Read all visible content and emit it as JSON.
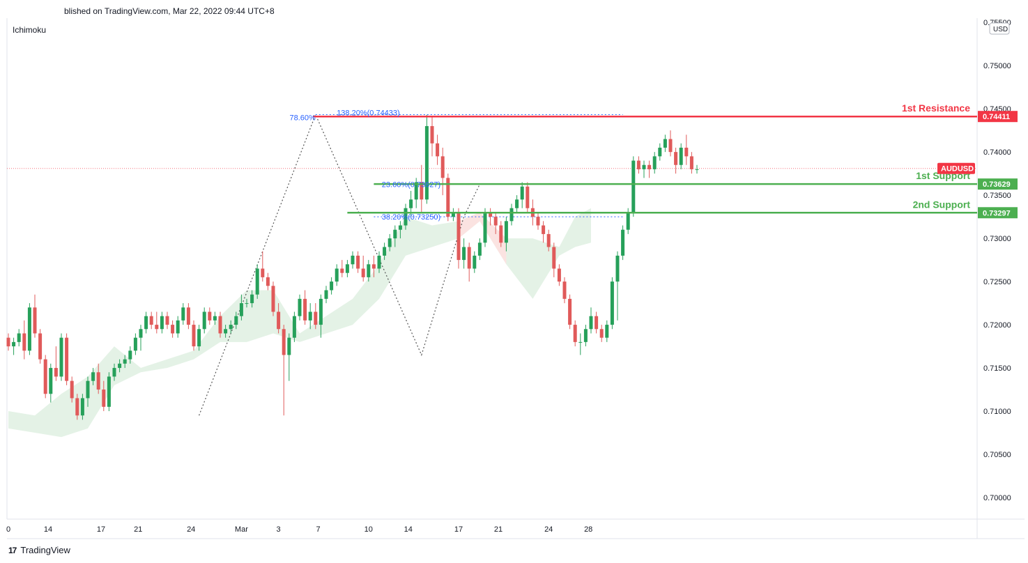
{
  "header": {
    "published": "blished on TradingView.com, Mar 22, 2022 09:44 UTC+8"
  },
  "indicator": "Ichimoku",
  "currency": "USD",
  "brand": {
    "name": "TradingView",
    "icon": "tradingview-logo-icon"
  },
  "colors": {
    "up": "#26a05a",
    "down": "#e05a5a",
    "resistance": "#f23645",
    "support": "#4caf50",
    "fib": "#2962ff",
    "cloud_up": "#e4f2e6",
    "cloud_down": "#fbe3e1",
    "price_line": "#f23645"
  },
  "chart_data": {
    "type": "candlestick",
    "symbol": "AUDUSD",
    "y_ticks": [
      "0.70000",
      "0.70500",
      "0.71000",
      "0.71500",
      "0.72000",
      "0.72500",
      "0.73000",
      "0.73500",
      "0.74000",
      "0.74500",
      "0.75000"
    ],
    "y_top_partial": "0.75500",
    "ylim": [
      0.6975,
      0.7555
    ],
    "x_ticks": [
      {
        "label": "0",
        "pos": 0
      },
      {
        "label": "14",
        "pos": 7.5
      },
      {
        "label": "17",
        "pos": 17.5
      },
      {
        "label": "21",
        "pos": 24.5
      },
      {
        "label": "24",
        "pos": 34.5
      },
      {
        "label": "Mar",
        "pos": 44
      },
      {
        "label": "3",
        "pos": 51
      },
      {
        "label": "7",
        "pos": 58.5
      },
      {
        "label": "10",
        "pos": 68
      },
      {
        "label": "14",
        "pos": 75.5
      },
      {
        "label": "17",
        "pos": 85
      },
      {
        "label": "21",
        "pos": 92.5
      },
      {
        "label": "24",
        "pos": 102
      },
      {
        "label": "28",
        "pos": 109.5
      }
    ],
    "candles": [
      [
        0.7185,
        0.719,
        0.717,
        0.7175
      ],
      [
        0.7175,
        0.7185,
        0.7165,
        0.718
      ],
      [
        0.718,
        0.7195,
        0.7175,
        0.719
      ],
      [
        0.719,
        0.7205,
        0.716,
        0.717
      ],
      [
        0.717,
        0.7225,
        0.7165,
        0.722
      ],
      [
        0.722,
        0.7235,
        0.7185,
        0.719
      ],
      [
        0.719,
        0.7195,
        0.7155,
        0.716
      ],
      [
        0.716,
        0.7165,
        0.7115,
        0.712
      ],
      [
        0.712,
        0.7155,
        0.711,
        0.715
      ],
      [
        0.715,
        0.7175,
        0.7135,
        0.714
      ],
      [
        0.714,
        0.719,
        0.7135,
        0.7185
      ],
      [
        0.7185,
        0.719,
        0.713,
        0.7135
      ],
      [
        0.7135,
        0.714,
        0.711,
        0.7115
      ],
      [
        0.7115,
        0.712,
        0.709,
        0.7095
      ],
      [
        0.7095,
        0.712,
        0.709,
        0.7115
      ],
      [
        0.7115,
        0.714,
        0.7105,
        0.7135
      ],
      [
        0.7135,
        0.715,
        0.713,
        0.7145
      ],
      [
        0.7145,
        0.7155,
        0.712,
        0.7125
      ],
      [
        0.7125,
        0.7135,
        0.71,
        0.7105
      ],
      [
        0.7105,
        0.7145,
        0.71,
        0.714
      ],
      [
        0.714,
        0.7155,
        0.7135,
        0.715
      ],
      [
        0.715,
        0.716,
        0.7145,
        0.7155
      ],
      [
        0.7155,
        0.7165,
        0.715,
        0.716
      ],
      [
        0.716,
        0.7175,
        0.7155,
        0.717
      ],
      [
        0.717,
        0.719,
        0.7165,
        0.7185
      ],
      [
        0.7185,
        0.72,
        0.717,
        0.7195
      ],
      [
        0.7195,
        0.7215,
        0.719,
        0.721
      ],
      [
        0.721,
        0.7215,
        0.7195,
        0.72
      ],
      [
        0.72,
        0.7215,
        0.719,
        0.7195
      ],
      [
        0.7195,
        0.7215,
        0.719,
        0.721
      ],
      [
        0.721,
        0.7215,
        0.7195,
        0.72
      ],
      [
        0.72,
        0.7205,
        0.7185,
        0.719
      ],
      [
        0.719,
        0.721,
        0.7185,
        0.7205
      ],
      [
        0.7205,
        0.7225,
        0.72,
        0.722
      ],
      [
        0.722,
        0.7225,
        0.7195,
        0.72
      ],
      [
        0.72,
        0.7205,
        0.717,
        0.7175
      ],
      [
        0.7175,
        0.72,
        0.717,
        0.7195
      ],
      [
        0.7195,
        0.722,
        0.719,
        0.7215
      ],
      [
        0.7215,
        0.722,
        0.72,
        0.7205
      ],
      [
        0.7205,
        0.7215,
        0.72,
        0.721
      ],
      [
        0.721,
        0.7215,
        0.7185,
        0.719
      ],
      [
        0.719,
        0.72,
        0.7185,
        0.7195
      ],
      [
        0.7195,
        0.7205,
        0.719,
        0.72
      ],
      [
        0.72,
        0.7215,
        0.7195,
        0.721
      ],
      [
        0.721,
        0.7235,
        0.7205,
        0.7225
      ],
      [
        0.7225,
        0.723,
        0.722,
        0.7225
      ],
      [
        0.7225,
        0.724,
        0.722,
        0.7235
      ],
      [
        0.7235,
        0.727,
        0.723,
        0.7265
      ],
      [
        0.7265,
        0.7285,
        0.725,
        0.7255
      ],
      [
        0.7255,
        0.726,
        0.724,
        0.7245
      ],
      [
        0.7245,
        0.725,
        0.721,
        0.7215
      ],
      [
        0.7215,
        0.7225,
        0.719,
        0.7195
      ],
      [
        0.7195,
        0.72,
        0.7095,
        0.7165
      ],
      [
        0.7165,
        0.719,
        0.7135,
        0.7185
      ],
      [
        0.7185,
        0.7215,
        0.718,
        0.721
      ],
      [
        0.721,
        0.7235,
        0.7205,
        0.723
      ],
      [
        0.723,
        0.724,
        0.72,
        0.7205
      ],
      [
        0.7205,
        0.7225,
        0.7195,
        0.7215
      ],
      [
        0.7215,
        0.7225,
        0.7195,
        0.72
      ],
      [
        0.72,
        0.7235,
        0.7185,
        0.723
      ],
      [
        0.723,
        0.7245,
        0.7225,
        0.724
      ],
      [
        0.724,
        0.7255,
        0.7235,
        0.725
      ],
      [
        0.725,
        0.727,
        0.7245,
        0.7265
      ],
      [
        0.7265,
        0.7275,
        0.7255,
        0.726
      ],
      [
        0.726,
        0.7275,
        0.7255,
        0.727
      ],
      [
        0.727,
        0.7285,
        0.7265,
        0.728
      ],
      [
        0.728,
        0.7285,
        0.726,
        0.7265
      ],
      [
        0.7265,
        0.728,
        0.725,
        0.7255
      ],
      [
        0.7255,
        0.7275,
        0.725,
        0.727
      ],
      [
        0.727,
        0.728,
        0.7255,
        0.7265
      ],
      [
        0.7265,
        0.7285,
        0.726,
        0.728
      ],
      [
        0.728,
        0.7295,
        0.7275,
        0.729
      ],
      [
        0.729,
        0.7305,
        0.7285,
        0.73
      ],
      [
        0.73,
        0.7315,
        0.729,
        0.731
      ],
      [
        0.731,
        0.732,
        0.73,
        0.7315
      ],
      [
        0.7315,
        0.734,
        0.731,
        0.7335
      ],
      [
        0.7335,
        0.7355,
        0.7325,
        0.7345
      ],
      [
        0.7345,
        0.737,
        0.7335,
        0.7365
      ],
      [
        0.7365,
        0.7385,
        0.733,
        0.7345
      ],
      [
        0.7345,
        0.7443,
        0.734,
        0.743
      ],
      [
        0.743,
        0.744,
        0.7395,
        0.741
      ],
      [
        0.741,
        0.742,
        0.7385,
        0.7395
      ],
      [
        0.7395,
        0.7405,
        0.735,
        0.737
      ],
      [
        0.737,
        0.7375,
        0.732,
        0.7325
      ],
      [
        0.7325,
        0.7335,
        0.732,
        0.733
      ],
      [
        0.733,
        0.7335,
        0.7265,
        0.7275
      ],
      [
        0.7275,
        0.73,
        0.7265,
        0.729
      ],
      [
        0.729,
        0.7295,
        0.725,
        0.7265
      ],
      [
        0.7265,
        0.7285,
        0.726,
        0.728
      ],
      [
        0.728,
        0.73,
        0.7275,
        0.7295
      ],
      [
        0.7295,
        0.7335,
        0.729,
        0.733
      ],
      [
        0.733,
        0.7335,
        0.7315,
        0.7325
      ],
      [
        0.7325,
        0.733,
        0.7305,
        0.7315
      ],
      [
        0.7315,
        0.732,
        0.729,
        0.7295
      ],
      [
        0.7295,
        0.7325,
        0.7285,
        0.732
      ],
      [
        0.732,
        0.734,
        0.7315,
        0.7335
      ],
      [
        0.7335,
        0.735,
        0.733,
        0.7345
      ],
      [
        0.7345,
        0.7365,
        0.7335,
        0.736
      ],
      [
        0.736,
        0.7365,
        0.733,
        0.7335
      ],
      [
        0.7335,
        0.7345,
        0.7315,
        0.7325
      ],
      [
        0.7325,
        0.733,
        0.731,
        0.7315
      ],
      [
        0.7315,
        0.732,
        0.7295,
        0.7305
      ],
      [
        0.7305,
        0.731,
        0.7285,
        0.729
      ],
      [
        0.729,
        0.7295,
        0.7255,
        0.7265
      ],
      [
        0.7265,
        0.727,
        0.7245,
        0.725
      ],
      [
        0.725,
        0.7255,
        0.7225,
        0.723
      ],
      [
        0.723,
        0.7235,
        0.7195,
        0.72
      ],
      [
        0.72,
        0.7205,
        0.7175,
        0.718
      ],
      [
        0.718,
        0.719,
        0.7165,
        0.718
      ],
      [
        0.718,
        0.72,
        0.7175,
        0.7195
      ],
      [
        0.7195,
        0.722,
        0.719,
        0.721
      ],
      [
        0.721,
        0.7215,
        0.719,
        0.7195
      ],
      [
        0.7195,
        0.72,
        0.718,
        0.7185
      ],
      [
        0.7185,
        0.7205,
        0.718,
        0.72
      ],
      [
        0.72,
        0.7255,
        0.7195,
        0.725
      ],
      [
        0.725,
        0.7285,
        0.7205,
        0.728
      ],
      [
        0.728,
        0.7315,
        0.7275,
        0.731
      ],
      [
        0.731,
        0.7335,
        0.7305,
        0.733
      ],
      [
        0.733,
        0.7395,
        0.7325,
        0.739
      ],
      [
        0.739,
        0.7395,
        0.7375,
        0.738
      ],
      [
        0.738,
        0.739,
        0.737,
        0.7385
      ],
      [
        0.7385,
        0.739,
        0.737,
        0.738
      ],
      [
        0.738,
        0.74,
        0.7375,
        0.7395
      ],
      [
        0.7395,
        0.741,
        0.739,
        0.7405
      ],
      [
        0.7405,
        0.742,
        0.74,
        0.7415
      ],
      [
        0.7415,
        0.7425,
        0.7395,
        0.74
      ],
      [
        0.74,
        0.7405,
        0.7375,
        0.7385
      ],
      [
        0.7385,
        0.741,
        0.738,
        0.7405
      ],
      [
        0.7405,
        0.742,
        0.7385,
        0.7395
      ],
      [
        0.7395,
        0.74,
        0.7375,
        0.738
      ],
      [
        0.738,
        0.7385,
        0.7375,
        0.738
      ]
    ],
    "cloud": [
      [
        0,
        0.71,
        0.708
      ],
      [
        5,
        0.7095,
        0.7075
      ],
      [
        10,
        0.712,
        0.707
      ],
      [
        15,
        0.714,
        0.708
      ],
      [
        20,
        0.7175,
        0.713
      ],
      [
        25,
        0.715,
        0.7145
      ],
      [
        30,
        0.716,
        0.715
      ],
      [
        35,
        0.717,
        0.716
      ],
      [
        40,
        0.721,
        0.718
      ],
      [
        45,
        0.724,
        0.718
      ],
      [
        50,
        0.724,
        0.719
      ],
      [
        55,
        0.719,
        0.718
      ],
      [
        60,
        0.721,
        0.719
      ],
      [
        65,
        0.723,
        0.72
      ],
      [
        70,
        0.727,
        0.723
      ],
      [
        75,
        0.7325,
        0.728
      ],
      [
        80,
        0.7315,
        0.729
      ],
      [
        85,
        0.732,
        0.73
      ],
      [
        89,
        0.732,
        0.733
      ],
      [
        94,
        0.73,
        0.727
      ],
      [
        99,
        0.73,
        0.723
      ],
      [
        104,
        0.729,
        0.728
      ],
      [
        107,
        0.7325,
        0.729
      ],
      [
        110,
        0.7335,
        0.7295
      ]
    ],
    "levels": [
      {
        "name": "1st Resistance",
        "value": 0.74411,
        "label": "0.74411",
        "kind": "resistance"
      },
      {
        "name": "1st Support",
        "value": 0.73629,
        "label": "0.73629",
        "kind": "support"
      },
      {
        "name": "2nd Support",
        "value": 0.73297,
        "label": "0.73297",
        "kind": "support"
      }
    ],
    "fib_labels": [
      {
        "text": "78.60%",
        "x": 58,
        "y": 0.744,
        "anchor": "end"
      },
      {
        "text": "138.20%(0.74433)",
        "x": 62,
        "y": 0.74455,
        "anchor": "start"
      },
      {
        "text": "23.60%(0.73627)",
        "x": 70.5,
        "y": 0.73627,
        "anchor": "start"
      },
      {
        "text": "38.20%(0.73250)",
        "x": 70.5,
        "y": 0.7325,
        "anchor": "start"
      }
    ],
    "fib_lines": [
      {
        "x1": 58,
        "x2": 116,
        "y": 0.74433
      },
      {
        "x1": 69,
        "x2": 116,
        "y": 0.73627
      },
      {
        "x1": 69,
        "x2": 116,
        "y": 0.7325
      }
    ],
    "zigzag": [
      [
        36,
        0.7095
      ],
      [
        58,
        0.74433
      ],
      [
        78,
        0.7165
      ],
      [
        86,
        0.7325
      ],
      [
        89,
        0.73627
      ]
    ],
    "last_price": {
      "value": 0.7381,
      "label": "AUDUSD"
    }
  }
}
